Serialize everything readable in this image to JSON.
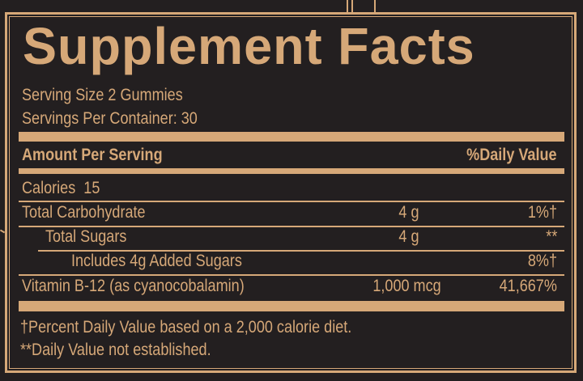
{
  "title": "Supplement Facts",
  "serving_size": "Serving Size 2 Gummies",
  "servings_per_container": "Servings Per Container: 30",
  "header": {
    "amount": "Amount Per Serving",
    "daily_value": "%Daily Value"
  },
  "calories": "Calories  15",
  "rows": [
    {
      "name": "Total Carbohydrate",
      "amount": "4 g",
      "dv": "1%†"
    },
    {
      "name": "Total Sugars",
      "amount": "4 g",
      "dv": "**"
    },
    {
      "name": "Includes 4g Added Sugars",
      "amount": "",
      "dv": "8%†"
    },
    {
      "name": "Vitamin B-12 (as cyanocobalamin)",
      "amount": "1,000 mcg",
      "dv": "41,667%"
    }
  ],
  "footnotes": [
    "†Percent Daily Value based on a 2,000 calorie diet.",
    "**Daily Value not established."
  ],
  "colors": {
    "background": "#231f20",
    "gold": "#d6a878"
  }
}
